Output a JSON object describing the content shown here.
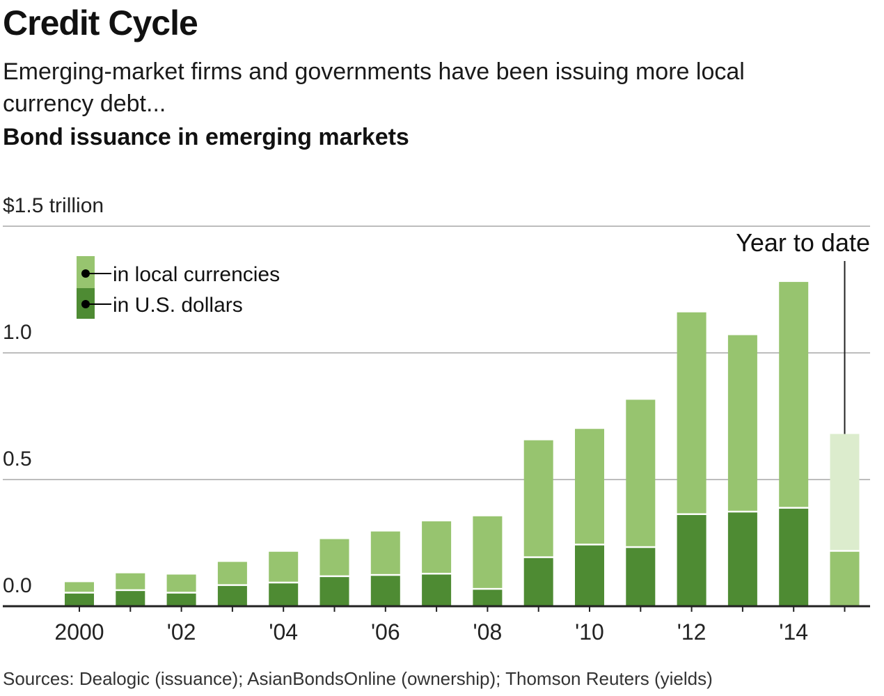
{
  "header": {
    "title": "Credit Cycle",
    "subtitle": "Emerging-market firms and governments have been issuing more local currency debt...",
    "chart_title": "Bond issuance in emerging markets"
  },
  "footer": {
    "source": "Sources: Dealogic (issuance); AsianBondsOnline (ownership); Thomson Reuters (yields)"
  },
  "colors": {
    "local": "#97c46f",
    "usd": "#4e8b33",
    "ytd_local": "#dceccd",
    "ytd_usd": "#97c46f",
    "grid": "#bdbdbd",
    "axis": "#222222"
  },
  "chart_data": {
    "type": "bar",
    "stacked": true,
    "title": "Bond issuance in emerging markets",
    "y_unit_label": "$1.5 trillion",
    "ylim": [
      0,
      1.5
    ],
    "yticks": [
      {
        "value": 0.0,
        "label": "0.0"
      },
      {
        "value": 0.5,
        "label": "0.5"
      },
      {
        "value": 1.0,
        "label": "1.0"
      },
      {
        "value": 1.5,
        "label": "$1.5 trillion"
      }
    ],
    "categories": [
      "2000",
      "2001",
      "2002",
      "2003",
      "2004",
      "2005",
      "2006",
      "2007",
      "2008",
      "2009",
      "2010",
      "2011",
      "2012",
      "2013",
      "2014",
      "2015"
    ],
    "xtick_labels": {
      "2000": "2000",
      "2002": "'02",
      "2004": "'04",
      "2006": "'06",
      "2008": "'08",
      "2010": "'10",
      "2012": "'12",
      "2014": "'14"
    },
    "series": [
      {
        "name": "in U.S. dollars",
        "key": "usd",
        "values": [
          0.05,
          0.06,
          0.05,
          0.08,
          0.09,
          0.115,
          0.12,
          0.125,
          0.065,
          0.19,
          0.24,
          0.23,
          0.36,
          0.37,
          0.385,
          0.215
        ]
      },
      {
        "name": "in local currencies",
        "key": "local",
        "values": [
          0.045,
          0.07,
          0.075,
          0.095,
          0.125,
          0.15,
          0.175,
          0.21,
          0.29,
          0.465,
          0.46,
          0.585,
          0.8,
          0.7,
          0.895,
          0.465
        ]
      }
    ],
    "annotations": [
      {
        "text": "Year to date",
        "category": "2015"
      }
    ],
    "legend_position": "top-left",
    "grid": true
  }
}
